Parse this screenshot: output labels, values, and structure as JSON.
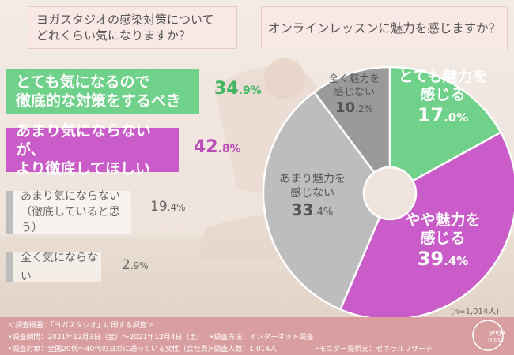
{
  "left_question": "ヨガスタジオの感染対策について\nどれくらい気になりますか？",
  "right_question": "オンラインレッスンに魅力を感じますか？",
  "left_bars": [
    {
      "label": "とても気になるので\n徹底的な対策をするべき",
      "value_int": "34",
      "value_dec": ".9%"
    },
    {
      "label": "あまり気にならないが、\nより徹底してほしい",
      "value_int": "42",
      "value_dec": ".8%"
    },
    {
      "label": "あまり気にならない\n（徹底していると思う）",
      "value_int": "19",
      "value_dec": ".4%"
    },
    {
      "label": "全く気にならない",
      "value_int": "2",
      "value_dec": ".9%"
    }
  ],
  "pie_labels": [
    {
      "name": "とても魅力を\n感じる",
      "value_int": "17",
      "value_dec": ".0%"
    },
    {
      "name": "やや魅力を\n感じる",
      "value_int": "39",
      "value_dec": ".4%"
    },
    {
      "name": "あまり魅力を\n感じない",
      "value_int": "33",
      "value_dec": ".4%"
    },
    {
      "name": "全く魅力を\n感じない",
      "value_int": "10",
      "value_dec": ".2%"
    }
  ],
  "sample_size": "(n=1,014人)",
  "footer": {
    "title": "＜調査概要：「ヨガスタジオ」に関する調査＞",
    "period": "•調査期間：2021年12月3日（金）〜2021年12月4日（土）",
    "method": "•調査方法：インターネット調査",
    "target": "•調査対象：全国20代〜40代のヨガに通っている女性（会社員）",
    "count": "•調査人数：1,014人",
    "provider": "•モニター提供元：ゼネラルリサーチ"
  },
  "logo_text": [
    "yoga",
    "moon"
  ],
  "colors": {
    "green": "#6fd18a",
    "purple": "#c95cc8",
    "grey": "#bdbdbd",
    "dark_grey": "#9a9a9a",
    "footer": "#d99ea0"
  },
  "chart_data": [
    {
      "type": "bar",
      "title": "ヨガスタジオの感染対策について どれくらい気になりますか？",
      "categories": [
        "とても気になるので徹底的な対策をするべき",
        "あまり気にならないが、より徹底してほしい",
        "あまり気にならない（徹底していると思う）",
        "全く気にならない"
      ],
      "values": [
        34.9,
        42.8,
        19.4,
        2.9
      ],
      "unit": "%"
    },
    {
      "type": "pie",
      "title": "オンラインレッスンに魅力を感じますか？",
      "categories": [
        "とても魅力を感じる",
        "やや魅力を感じる",
        "あまり魅力を感じない",
        "全く魅力を感じない"
      ],
      "values": [
        17.0,
        39.4,
        33.4,
        10.2
      ],
      "unit": "%",
      "colors": [
        "#6fd18a",
        "#c95cc8",
        "#bdbdbd",
        "#9a9a9a"
      ]
    }
  ]
}
